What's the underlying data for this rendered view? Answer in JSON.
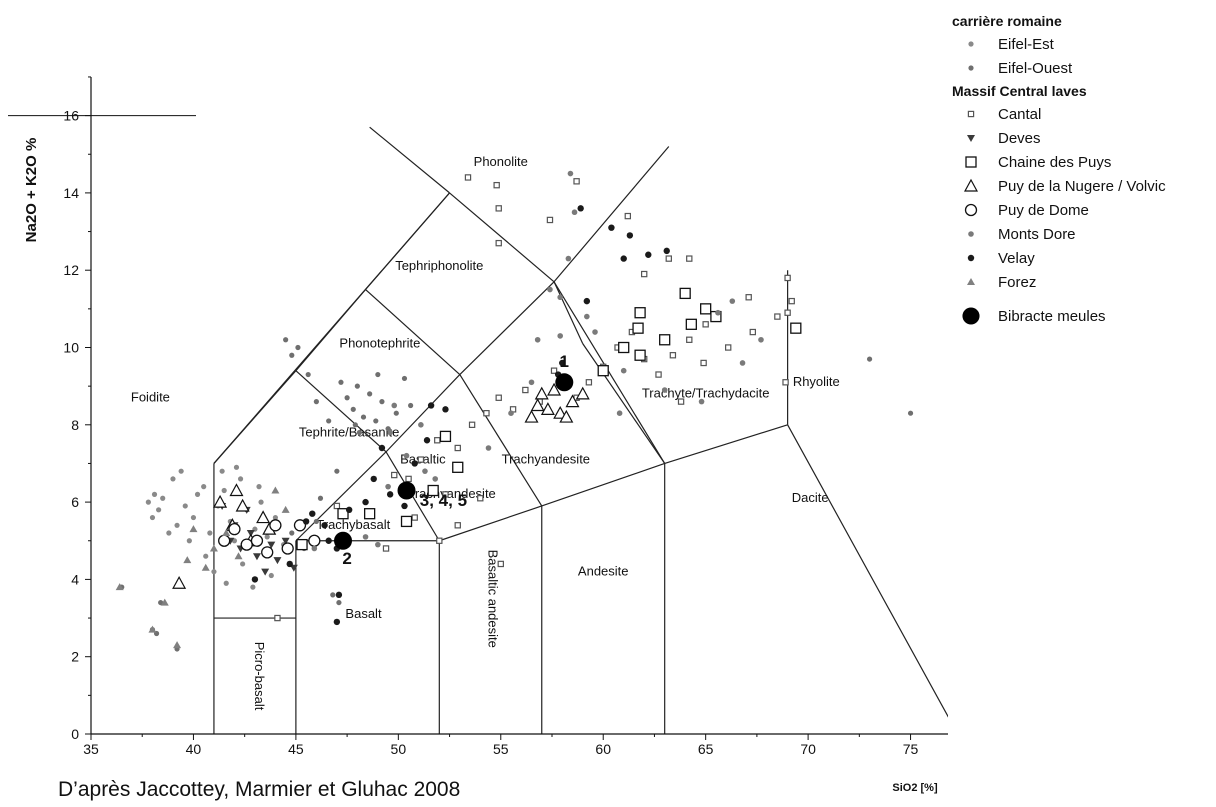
{
  "chart_data": {
    "type": "scatter",
    "title": "",
    "xlabel": "SiO2 [%]",
    "ylabel": "Na2O + K2O %",
    "xlim": [
      35,
      80
    ],
    "ylim": [
      0,
      17
    ],
    "x_ticks": [
      "35",
      "40",
      "45",
      "50",
      "55",
      "60",
      "65",
      "70",
      "75",
      "80"
    ],
    "y_ticks": [
      "0",
      "2",
      "4",
      "6",
      "8",
      "10",
      "12",
      "14",
      "16"
    ],
    "grid": false,
    "legend_position": "top-right",
    "fields": [
      {
        "label": "Foidite"
      },
      {
        "label": "Phonolite"
      },
      {
        "label": "Tephriphonolite"
      },
      {
        "label": "Phonotephrite"
      },
      {
        "label": "Tephrite/Basanite"
      },
      {
        "label": "Basaltic"
      },
      {
        "label": "Trachyandesite"
      },
      {
        "label": "Trachyandesite"
      },
      {
        "label": "Trachyte/Trachydacite"
      },
      {
        "label": "Rhyolite"
      },
      {
        "label": "Trachybasalt"
      },
      {
        "label": "Dacite"
      },
      {
        "label": "Andesite"
      },
      {
        "label": "Basaltic andesite"
      },
      {
        "label": "Basalt"
      },
      {
        "label": "Picro-basalt"
      }
    ],
    "annotations": [
      {
        "text": "1",
        "x": 58.1,
        "y": 9.5
      },
      {
        "text": "2",
        "x": 47.5,
        "y": 4.4
      },
      {
        "text": "3, 4, 5",
        "x": 52.2,
        "y": 5.9
      }
    ],
    "legend": {
      "group1_title": "carrière romaine",
      "group2_title": "Massif Central laves",
      "items": [
        {
          "label": "Eifel-Est",
          "symbol": "small-dot"
        },
        {
          "label": "Eifel-Ouest",
          "symbol": "small-dot"
        },
        {
          "label": "Cantal",
          "symbol": "small-square"
        },
        {
          "label": "Deves",
          "symbol": "down-triangle-filled"
        },
        {
          "label": "Chaine des Puys",
          "symbol": "open-square"
        },
        {
          "label": "Puy de la Nugere / Volvic",
          "symbol": "open-triangle"
        },
        {
          "label": "Puy de Dome",
          "symbol": "open-circle"
        },
        {
          "label": "Monts Dore",
          "symbol": "gray-circle"
        },
        {
          "label": "Velay",
          "symbol": "filled-circle"
        },
        {
          "label": "Forez",
          "symbol": "gray-triangle"
        },
        {
          "label": "Bibracte meules",
          "symbol": "big-filled-circle"
        }
      ]
    },
    "series": [
      {
        "name": "Eifel-Est",
        "symbol": "small-dot",
        "color": "#8a8a8a",
        "points": [
          [
            37.8,
            6.0
          ],
          [
            38.1,
            6.2
          ],
          [
            38.3,
            5.8
          ],
          [
            38.5,
            6.1
          ],
          [
            38.0,
            5.6
          ],
          [
            39.0,
            6.6
          ],
          [
            39.4,
            6.8
          ],
          [
            39.2,
            5.4
          ],
          [
            39.8,
            5.0
          ],
          [
            40.0,
            5.6
          ],
          [
            40.2,
            6.2
          ],
          [
            40.5,
            6.4
          ],
          [
            40.8,
            5.2
          ],
          [
            41.2,
            5.9
          ],
          [
            41.5,
            6.3
          ],
          [
            41.8,
            5.5
          ],
          [
            42.0,
            5.0
          ],
          [
            42.3,
            6.6
          ],
          [
            42.6,
            5.8
          ],
          [
            43.0,
            5.3
          ],
          [
            43.3,
            6.0
          ],
          [
            43.6,
            5.1
          ],
          [
            44.0,
            5.6
          ],
          [
            44.4,
            4.9
          ],
          [
            40.6,
            4.6
          ],
          [
            41.0,
            4.2
          ],
          [
            41.6,
            3.9
          ],
          [
            42.4,
            4.4
          ],
          [
            42.9,
            3.8
          ],
          [
            43.8,
            4.1
          ],
          [
            38.8,
            5.2
          ],
          [
            39.6,
            5.9
          ],
          [
            41.4,
            6.8
          ],
          [
            42.1,
            6.9
          ],
          [
            43.2,
            6.4
          ]
        ]
      },
      {
        "name": "Eifel-Ouest",
        "symbol": "small-dot",
        "color": "#6f6f6f",
        "points": [
          [
            44.5,
            10.2
          ],
          [
            44.8,
            9.8
          ],
          [
            45.1,
            10.0
          ],
          [
            45.6,
            9.3
          ],
          [
            46.0,
            8.6
          ],
          [
            47.2,
            9.1
          ],
          [
            47.5,
            8.7
          ],
          [
            47.8,
            8.4
          ],
          [
            48.0,
            9.0
          ],
          [
            48.3,
            8.2
          ],
          [
            48.6,
            8.8
          ],
          [
            48.9,
            8.1
          ],
          [
            49.2,
            8.6
          ],
          [
            49.5,
            7.9
          ],
          [
            49.9,
            8.3
          ],
          [
            50.3,
            9.2
          ],
          [
            50.6,
            8.5
          ],
          [
            48.1,
            7.8
          ],
          [
            47.9,
            8.0
          ],
          [
            49.0,
            9.3
          ],
          [
            46.6,
            8.1
          ],
          [
            47.0,
            6.8
          ],
          [
            46.2,
            6.1
          ],
          [
            46.0,
            5.5
          ],
          [
            45.4,
            4.8
          ],
          [
            44.8,
            5.2
          ],
          [
            46.8,
            3.6
          ],
          [
            47.1,
            3.4
          ],
          [
            36.5,
            3.8
          ],
          [
            38.0,
            2.7
          ],
          [
            38.4,
            3.4
          ],
          [
            39.2,
            2.2
          ],
          [
            38.2,
            2.6
          ],
          [
            75.0,
            8.3
          ],
          [
            73.0,
            9.7
          ]
        ]
      },
      {
        "name": "Cantal",
        "symbol": "small-square",
        "color": "#555555",
        "points": [
          [
            53.4,
            14.4
          ],
          [
            54.8,
            14.2
          ],
          [
            54.9,
            13.6
          ],
          [
            54.9,
            12.7
          ],
          [
            57.4,
            13.3
          ],
          [
            58.7,
            14.3
          ],
          [
            61.2,
            13.4
          ],
          [
            63.2,
            12.3
          ],
          [
            64.2,
            12.3
          ],
          [
            67.1,
            11.3
          ],
          [
            69.0,
            11.8
          ],
          [
            69.2,
            11.2
          ],
          [
            69.0,
            10.9
          ],
          [
            68.5,
            10.8
          ],
          [
            67.3,
            10.4
          ],
          [
            66.1,
            10.0
          ],
          [
            65.0,
            10.6
          ],
          [
            64.2,
            10.2
          ],
          [
            63.4,
            9.8
          ],
          [
            62.7,
            9.3
          ],
          [
            62.0,
            9.7
          ],
          [
            61.4,
            10.4
          ],
          [
            60.7,
            10.0
          ],
          [
            60.0,
            9.5
          ],
          [
            59.3,
            9.1
          ],
          [
            58.7,
            8.7
          ],
          [
            57.6,
            9.4
          ],
          [
            56.9,
            8.6
          ],
          [
            56.2,
            8.9
          ],
          [
            55.6,
            8.4
          ],
          [
            54.9,
            8.7
          ],
          [
            54.3,
            8.3
          ],
          [
            53.6,
            8.0
          ],
          [
            52.9,
            7.4
          ],
          [
            51.9,
            7.6
          ],
          [
            51.1,
            7.1
          ],
          [
            49.8,
            6.7
          ],
          [
            50.5,
            6.6
          ],
          [
            52.3,
            6.2
          ],
          [
            52.9,
            5.4
          ],
          [
            54.0,
            6.1
          ],
          [
            52.0,
            5.0
          ],
          [
            50.8,
            5.6
          ],
          [
            47.0,
            5.9
          ],
          [
            49.4,
            4.8
          ],
          [
            55.0,
            4.4
          ],
          [
            44.1,
            3.0
          ],
          [
            62.0,
            11.9
          ],
          [
            64.9,
            9.6
          ],
          [
            63.8,
            8.6
          ],
          [
            68.9,
            9.1
          ]
        ]
      },
      {
        "name": "Deves",
        "symbol": "down-triangle-filled",
        "color": "#3a3a3a",
        "points": [
          [
            41.4,
            5.9
          ],
          [
            42.0,
            5.4
          ],
          [
            42.3,
            4.8
          ],
          [
            42.8,
            5.2
          ],
          [
            43.1,
            4.6
          ],
          [
            43.5,
            4.2
          ],
          [
            43.8,
            4.9
          ],
          [
            44.1,
            4.5
          ],
          [
            44.5,
            5.0
          ],
          [
            44.9,
            4.3
          ],
          [
            42.6,
            5.8
          ],
          [
            41.8,
            5.0
          ]
        ]
      },
      {
        "name": "Chaine des Puys",
        "symbol": "open-square",
        "color": "#111111",
        "points": [
          [
            64.0,
            11.4
          ],
          [
            65.0,
            11.0
          ],
          [
            65.5,
            10.8
          ],
          [
            61.8,
            10.9
          ],
          [
            61.7,
            10.5
          ],
          [
            63.0,
            10.2
          ],
          [
            64.3,
            10.6
          ],
          [
            61.0,
            10.0
          ],
          [
            61.8,
            9.8
          ],
          [
            69.4,
            10.5
          ],
          [
            60.0,
            9.4
          ],
          [
            52.3,
            7.7
          ],
          [
            52.9,
            6.9
          ],
          [
            51.7,
            6.3
          ],
          [
            50.4,
            5.5
          ],
          [
            47.3,
            5.7
          ],
          [
            48.6,
            5.7
          ],
          [
            45.3,
            4.9
          ]
        ]
      },
      {
        "name": "Puy de la Nugere / Volvic",
        "symbol": "open-triangle",
        "color": "#111111",
        "points": [
          [
            56.8,
            8.5
          ],
          [
            57.0,
            8.8
          ],
          [
            57.3,
            8.4
          ],
          [
            57.6,
            8.9
          ],
          [
            57.9,
            8.3
          ],
          [
            58.2,
            8.2
          ],
          [
            58.5,
            8.6
          ],
          [
            59.0,
            8.8
          ],
          [
            56.5,
            8.2
          ],
          [
            41.3,
            6.0
          ],
          [
            41.9,
            5.4
          ],
          [
            42.4,
            5.9
          ],
          [
            42.8,
            5.0
          ],
          [
            43.4,
            5.6
          ],
          [
            43.7,
            5.3
          ],
          [
            39.3,
            3.9
          ],
          [
            42.1,
            6.3
          ]
        ]
      },
      {
        "name": "Puy de Dome",
        "symbol": "open-circle",
        "color": "#111111",
        "points": [
          [
            41.5,
            5.0
          ],
          [
            42.0,
            5.3
          ],
          [
            42.6,
            4.9
          ],
          [
            43.1,
            5.0
          ],
          [
            43.6,
            4.7
          ],
          [
            44.0,
            5.4
          ],
          [
            44.6,
            4.8
          ],
          [
            45.2,
            5.4
          ],
          [
            45.9,
            5.0
          ]
        ]
      },
      {
        "name": "Monts Dore",
        "symbol": "gray-circle",
        "color": "#7a7a7a",
        "points": [
          [
            58.4,
            14.5
          ],
          [
            58.6,
            13.5
          ],
          [
            58.3,
            12.3
          ],
          [
            57.4,
            11.5
          ],
          [
            57.9,
            11.3
          ],
          [
            59.2,
            10.8
          ],
          [
            59.6,
            10.4
          ],
          [
            57.9,
            10.3
          ],
          [
            56.8,
            10.2
          ],
          [
            56.5,
            9.1
          ],
          [
            55.5,
            8.3
          ],
          [
            54.4,
            7.4
          ],
          [
            61.0,
            9.4
          ],
          [
            63.0,
            8.9
          ],
          [
            64.8,
            8.6
          ],
          [
            65.6,
            10.9
          ],
          [
            66.8,
            9.6
          ],
          [
            67.7,
            10.2
          ],
          [
            66.3,
            11.2
          ],
          [
            60.8,
            8.3
          ],
          [
            51.1,
            8.0
          ],
          [
            49.8,
            8.5
          ],
          [
            49.6,
            7.8
          ],
          [
            50.4,
            7.2
          ],
          [
            49.5,
            6.4
          ],
          [
            51.3,
            6.8
          ],
          [
            51.8,
            6.6
          ],
          [
            48.4,
            5.1
          ],
          [
            49.0,
            4.9
          ],
          [
            45.9,
            4.8
          ]
        ]
      },
      {
        "name": "Velay",
        "symbol": "filled-circle",
        "color": "#1a1a1a",
        "points": [
          [
            58.9,
            13.6
          ],
          [
            60.4,
            13.1
          ],
          [
            61.3,
            12.9
          ],
          [
            62.2,
            12.4
          ],
          [
            63.1,
            12.5
          ],
          [
            61.0,
            12.3
          ],
          [
            59.2,
            11.2
          ],
          [
            58.0,
            9.6
          ],
          [
            57.8,
            9.3
          ],
          [
            51.6,
            8.5
          ],
          [
            52.3,
            8.4
          ],
          [
            51.4,
            7.6
          ],
          [
            49.2,
            7.4
          ],
          [
            50.8,
            7.0
          ],
          [
            48.8,
            6.6
          ],
          [
            48.4,
            6.0
          ],
          [
            47.6,
            5.8
          ],
          [
            49.6,
            6.2
          ],
          [
            50.3,
            5.9
          ],
          [
            46.4,
            5.4
          ],
          [
            45.5,
            5.5
          ],
          [
            45.8,
            5.7
          ],
          [
            46.6,
            5.0
          ],
          [
            47.0,
            4.8
          ],
          [
            44.7,
            4.4
          ],
          [
            43.0,
            4.0
          ],
          [
            47.0,
            2.9
          ],
          [
            47.1,
            3.6
          ]
        ]
      },
      {
        "name": "Forez",
        "symbol": "gray-triangle",
        "color": "#808080",
        "points": [
          [
            36.4,
            3.8
          ],
          [
            38.0,
            2.7
          ],
          [
            38.6,
            3.4
          ],
          [
            39.2,
            2.3
          ],
          [
            39.7,
            4.5
          ],
          [
            40.6,
            4.3
          ],
          [
            41.0,
            4.8
          ],
          [
            41.6,
            5.2
          ],
          [
            42.2,
            4.6
          ],
          [
            44.5,
            5.8
          ],
          [
            44.0,
            6.3
          ],
          [
            40.0,
            5.3
          ]
        ]
      },
      {
        "name": "Bibracte meules",
        "symbol": "big-filled-circle",
        "color": "#000000",
        "points": [
          [
            58.1,
            9.1
          ],
          [
            47.3,
            5.0
          ],
          [
            50.4,
            6.3
          ]
        ]
      }
    ]
  }
}
